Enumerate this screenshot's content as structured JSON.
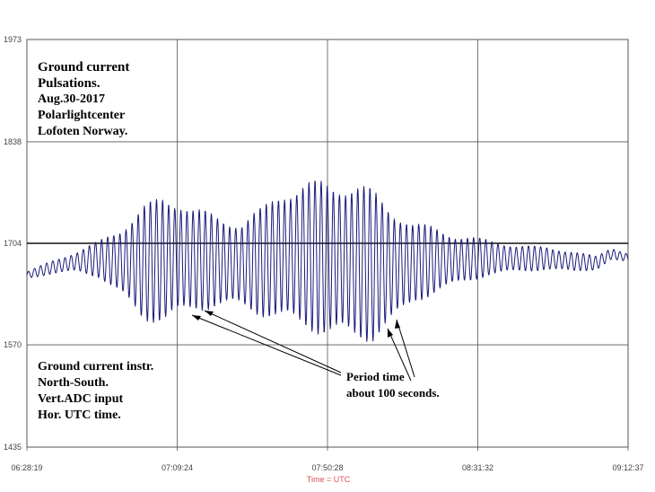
{
  "chart_data": {
    "type": "line",
    "title_lines": [
      "Ground current",
      "Pulsations.",
      "Aug.30-2017",
      "Polarlightcenter",
      "Lofoten Norway."
    ],
    "info_lines": [
      "Ground current instr.",
      "North-South.",
      "Vert.ADC input",
      "Hor. UTC time."
    ],
    "xlabel": "Time = UTC",
    "ylabel": "",
    "x_ticks": [
      "06:28:19",
      "07:09:24",
      "07:50:28",
      "08:31:32",
      "09:12:37"
    ],
    "y_ticks": [
      1973,
      1838,
      1704,
      1570,
      1435
    ],
    "ylim": [
      1435,
      1973
    ],
    "xlim": [
      "06:28:19",
      "09:12:37"
    ],
    "reference_line": 1704,
    "grid": true,
    "annotation_lines": [
      "Period time",
      "about 100 seconds."
    ],
    "pulsation_period_seconds": 100,
    "series": [
      {
        "color": "#1a1a7a",
        "envelope": {
          "t": [
            "06:28:19",
            "06:35:00",
            "06:42:00",
            "06:48:00",
            "06:54:00",
            "07:00:00",
            "07:06:00",
            "07:10:00",
            "07:14:00",
            "07:20:00",
            "07:27:00",
            "07:33:00",
            "07:38:00",
            "07:45:00",
            "07:50:00",
            "07:54:00",
            "07:58:00",
            "08:03:00",
            "08:09:00",
            "08:14:00",
            "08:20:00",
            "08:26:00",
            "08:34:00",
            "08:42:00",
            "08:50:00",
            "08:58:00",
            "09:04:00",
            "09:08:00",
            "09:12:37"
          ],
          "center": [
            1662,
            1672,
            1680,
            1683,
            1680,
            1678,
            1683,
            1685,
            1683,
            1680,
            1676,
            1680,
            1688,
            1688,
            1684,
            1683,
            1680,
            1675,
            1675,
            1678,
            1682,
            1682,
            1685,
            1684,
            1684,
            1680,
            1678,
            1690,
            1685
          ],
          "amplitude": [
            4,
            8,
            12,
            22,
            42,
            68,
            78,
            72,
            62,
            56,
            52,
            66,
            82,
            88,
            94,
            96,
            96,
            90,
            68,
            48,
            40,
            30,
            22,
            16,
            14,
            12,
            8,
            8,
            5
          ]
        }
      }
    ]
  }
}
